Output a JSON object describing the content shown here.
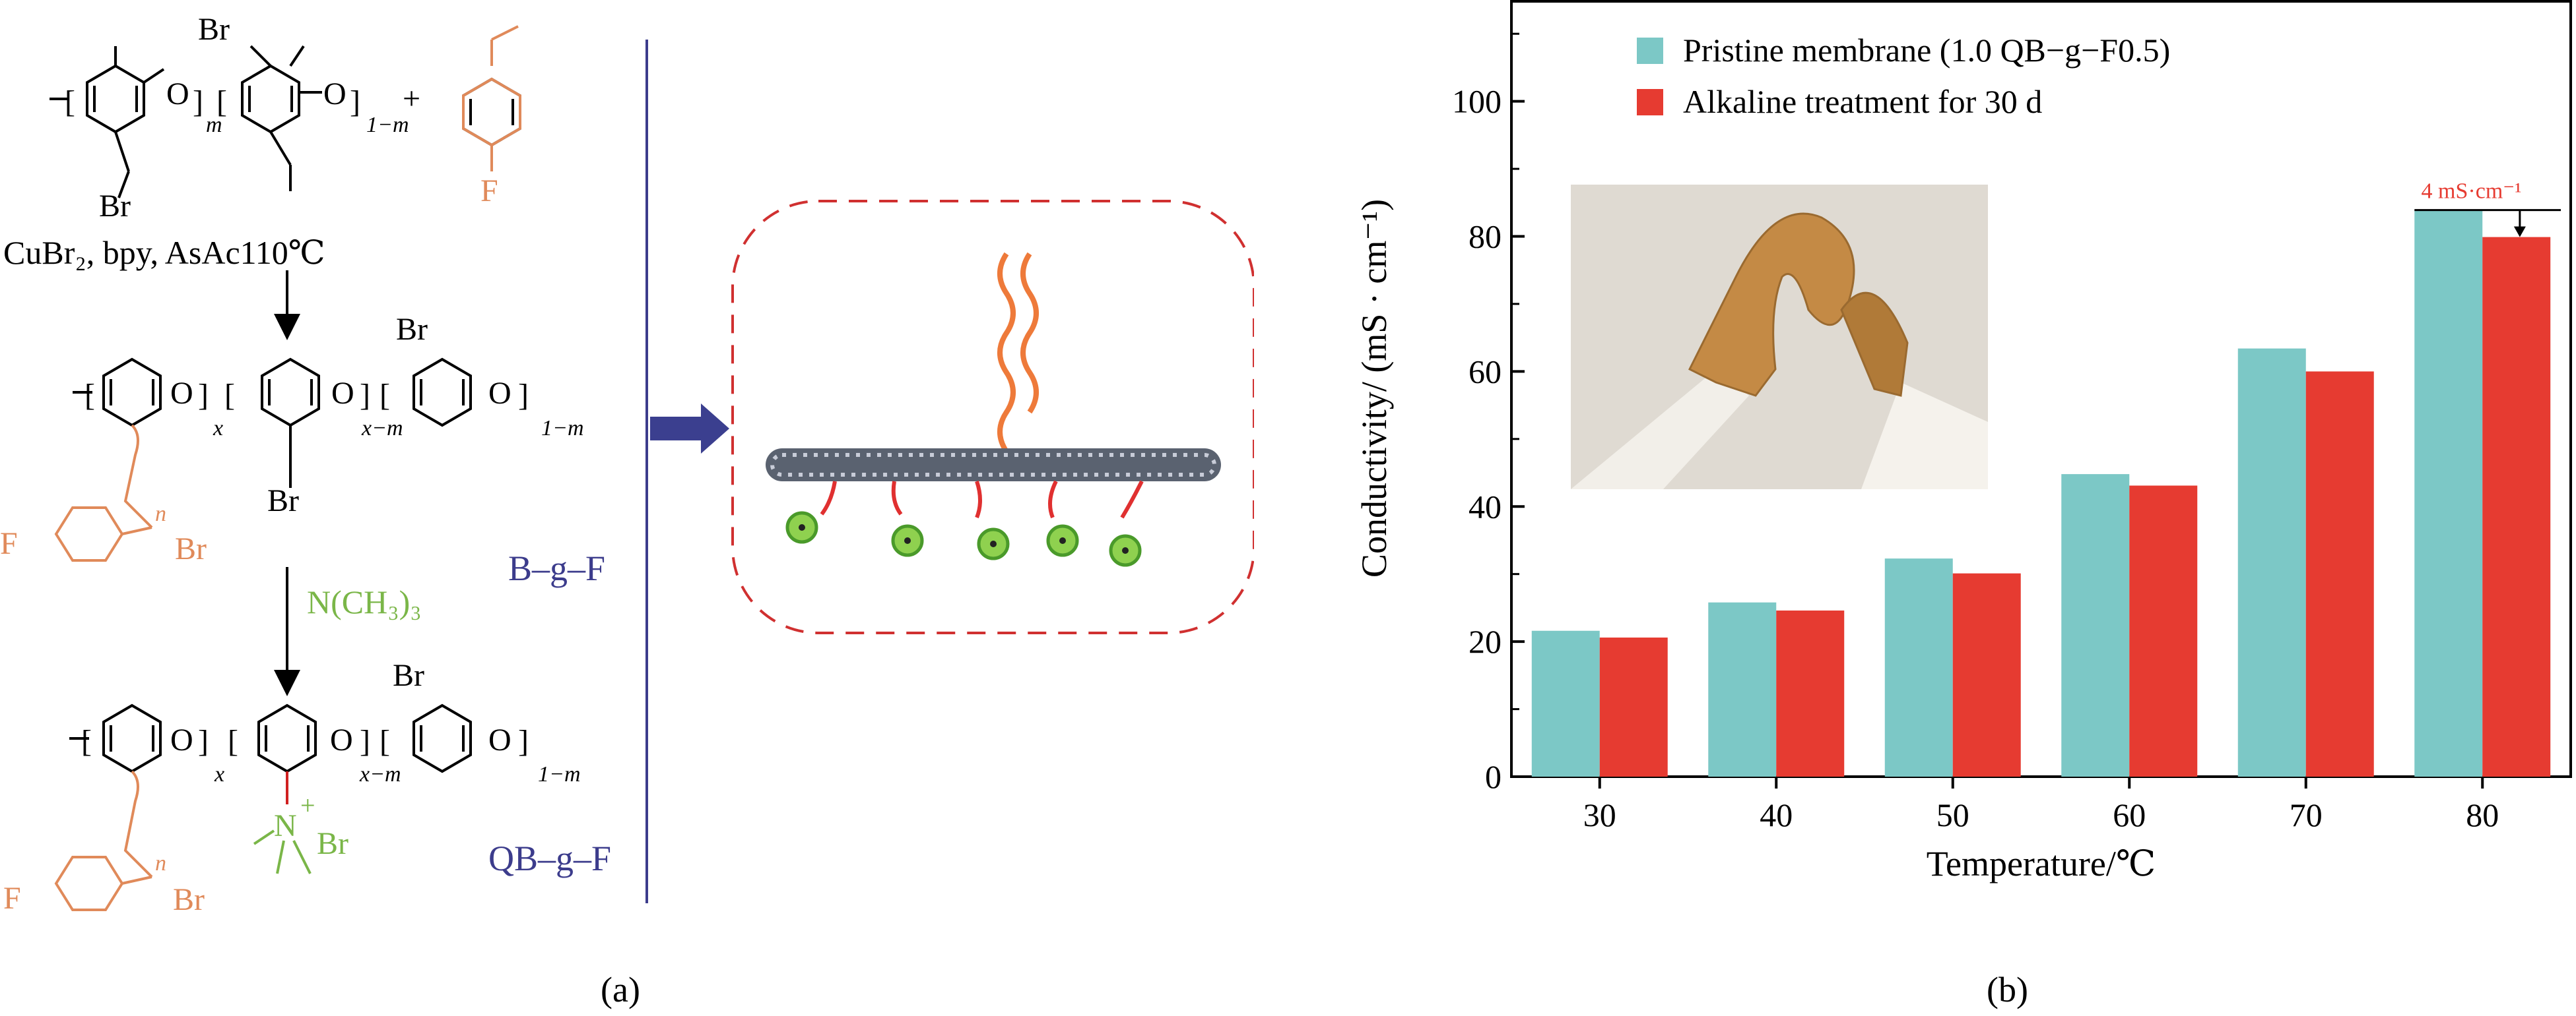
{
  "panel_labels": {
    "a": "(a)",
    "b": "(b)"
  },
  "colors": {
    "pristine": "#7cc8c6",
    "alkaline": "#e63b31",
    "annotation": "#e63b31",
    "scheme_orange": "#e08a5a",
    "scheme_green": "#7ab648",
    "scheme_navy": "#3c3c8c",
    "arrow_navy": "#3b3f8f"
  },
  "scheme": {
    "top_reagent": "CuBr₂, bpy, AsAc110℃",
    "step2_reagent": "N(CH₃)₃",
    "label_bgf": "B–g–F",
    "label_qbgf": "QB–g–F",
    "text": {
      "br": "Br",
      "o": "O",
      "f": "F",
      "n": "N",
      "m": "m",
      "one_minus_m": "1−m",
      "x": "x",
      "x_minus_m": "x−m",
      "n_sub": "n",
      "plus": "+"
    }
  },
  "chart_data": {
    "type": "bar",
    "title": "",
    "xlabel": "Temperature/℃",
    "ylabel": "Conductivity/ (mS · cm⁻¹)",
    "categories": [
      "30",
      "40",
      "50",
      "60",
      "70",
      "80"
    ],
    "series": [
      {
        "name": "Pristine membrane (1.0 QB−g−F0.5)",
        "values": [
          21.6,
          25.8,
          32.3,
          44.8,
          63.4,
          83.9
        ]
      },
      {
        "name": "Alkaline treatment for 30 d",
        "values": [
          20.6,
          24.6,
          30.1,
          43.1,
          60.0,
          79.9
        ]
      }
    ],
    "ylim": [
      0,
      115
    ],
    "yticks": [
      0,
      20,
      40,
      60,
      80,
      100
    ],
    "legend_position": "top-left",
    "annotation": {
      "text": "4 mS·cm⁻¹",
      "category": "80",
      "values": [
        83.9,
        79.9
      ]
    }
  }
}
